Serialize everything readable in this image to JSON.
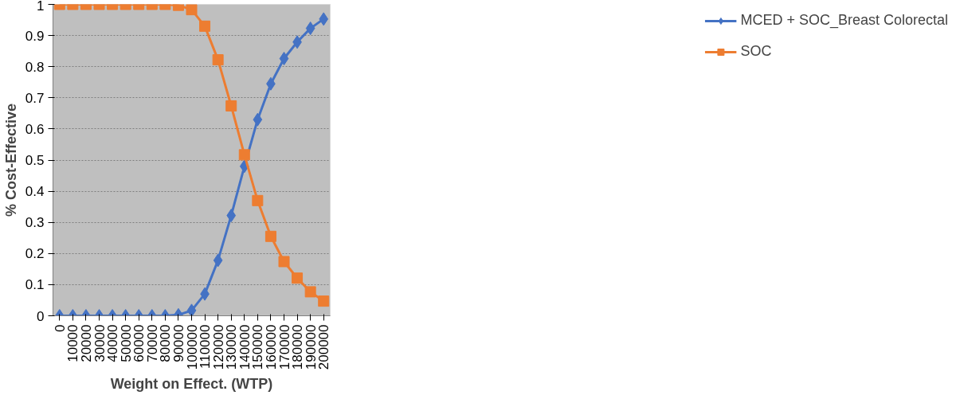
{
  "chart_data": {
    "type": "line",
    "xlabel": "Weight on Effect. (WTP)",
    "ylabel": "% Cost-Effective",
    "categories": [
      "0",
      "10000",
      "20000",
      "30000",
      "40000",
      "50000",
      "60000",
      "70000",
      "80000",
      "90000",
      "100000",
      "110000",
      "120000",
      "130000",
      "140000",
      "150000",
      "160000",
      "170000",
      "180000",
      "190000",
      "200000"
    ],
    "series": [
      {
        "name": "MCED + SOC_Breast Colorectal",
        "color": "#4472c4",
        "marker": "diamond",
        "values": [
          0,
          0,
          0,
          0,
          0,
          0,
          0,
          0,
          0,
          0.003,
          0.017,
          0.07,
          0.178,
          0.322,
          0.48,
          0.63,
          0.745,
          0.826,
          0.879,
          0.923,
          0.953
        ]
      },
      {
        "name": "SOC",
        "color": "#ed7d31",
        "marker": "square",
        "values": [
          1,
          1,
          1,
          1,
          1,
          1,
          1,
          1,
          1,
          0.997,
          0.983,
          0.93,
          0.822,
          0.674,
          0.517,
          0.37,
          0.255,
          0.174,
          0.121,
          0.077,
          0.047
        ]
      }
    ],
    "ylim": [
      0,
      1
    ],
    "yticks": [
      0,
      0.1,
      0.2,
      0.3,
      0.4,
      0.5,
      0.6,
      0.7,
      0.8,
      0.9,
      1
    ],
    "grid": "y",
    "legend": "right",
    "line_style": "solid"
  }
}
